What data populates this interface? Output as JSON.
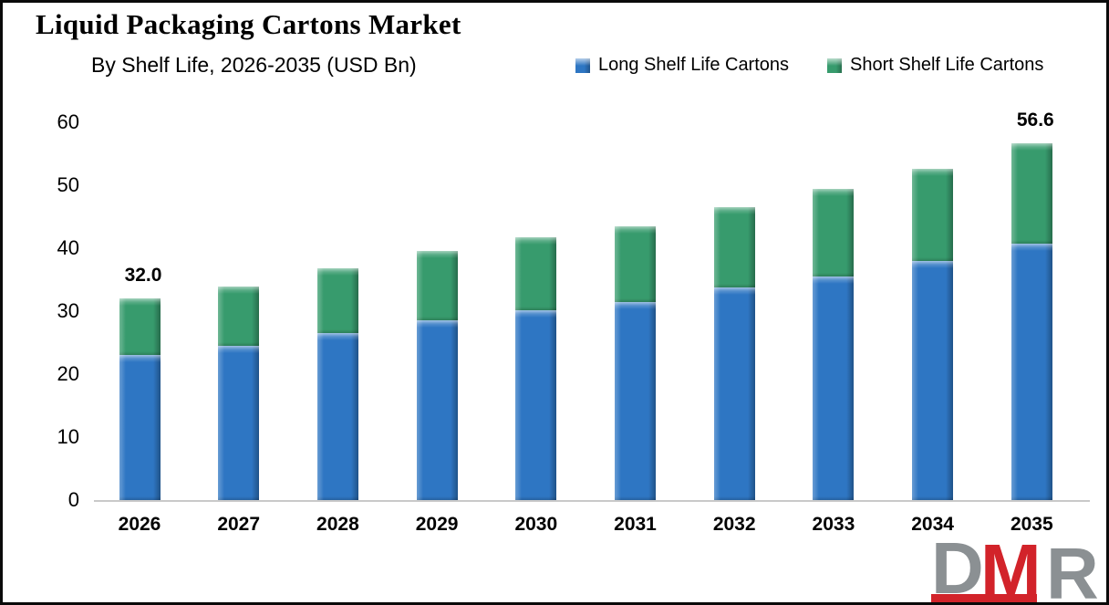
{
  "header": {
    "title": "Liquid Packaging Cartons Market",
    "subtitle": "By Shelf Life, 2026-2035 (USD Bn)"
  },
  "legend": [
    {
      "label": "Long Shelf Life Cartons",
      "color": "#2e76c3"
    },
    {
      "label": "Short Shelf Life Cartons",
      "color": "#379b6d"
    }
  ],
  "chart_data": {
    "type": "bar",
    "stacked": true,
    "title": "Liquid Packaging Cartons Market",
    "subtitle": "By Shelf Life, 2026-2035 (USD Bn)",
    "unit": "USD Bn",
    "categories": [
      "2026",
      "2027",
      "2028",
      "2029",
      "2030",
      "2031",
      "2032",
      "2033",
      "2034",
      "2035"
    ],
    "series": [
      {
        "name": "Long Shelf Life Cartons",
        "color": "#2e76c3",
        "values": [
          23.0,
          24.5,
          26.5,
          28.6,
          30.2,
          31.4,
          33.7,
          35.5,
          38.0,
          40.7
        ]
      },
      {
        "name": "Short Shelf Life Cartons",
        "color": "#379b6d",
        "values": [
          9.0,
          9.4,
          10.3,
          11.0,
          11.6,
          12.1,
          12.8,
          13.9,
          14.6,
          15.9
        ]
      }
    ],
    "totals": [
      32.0,
      33.9,
      36.8,
      39.6,
      41.8,
      43.5,
      46.5,
      49.4,
      52.6,
      56.6
    ],
    "bar_labels": [
      "32.0",
      "",
      "",
      "",
      "",
      "",
      "",
      "",
      "",
      "56.6"
    ],
    "y_axis": {
      "min": 0,
      "max": 60,
      "step": 10,
      "ticks": [
        "0",
        "10",
        "20",
        "30",
        "40",
        "50",
        "60"
      ]
    },
    "grid": false,
    "legend_position": "top-right"
  },
  "logo": {
    "letter_1": "D",
    "letter_2": "M",
    "letter_3": "R"
  },
  "colors": {
    "long_blue": "#2e76c3",
    "short_green": "#379b6d",
    "axis_line": "#c9c9c9",
    "text": "#000000",
    "logo_red": "#d2232a",
    "logo_gray": "#8b9093",
    "background": "#ffffff",
    "border": "#0a0a0a"
  }
}
